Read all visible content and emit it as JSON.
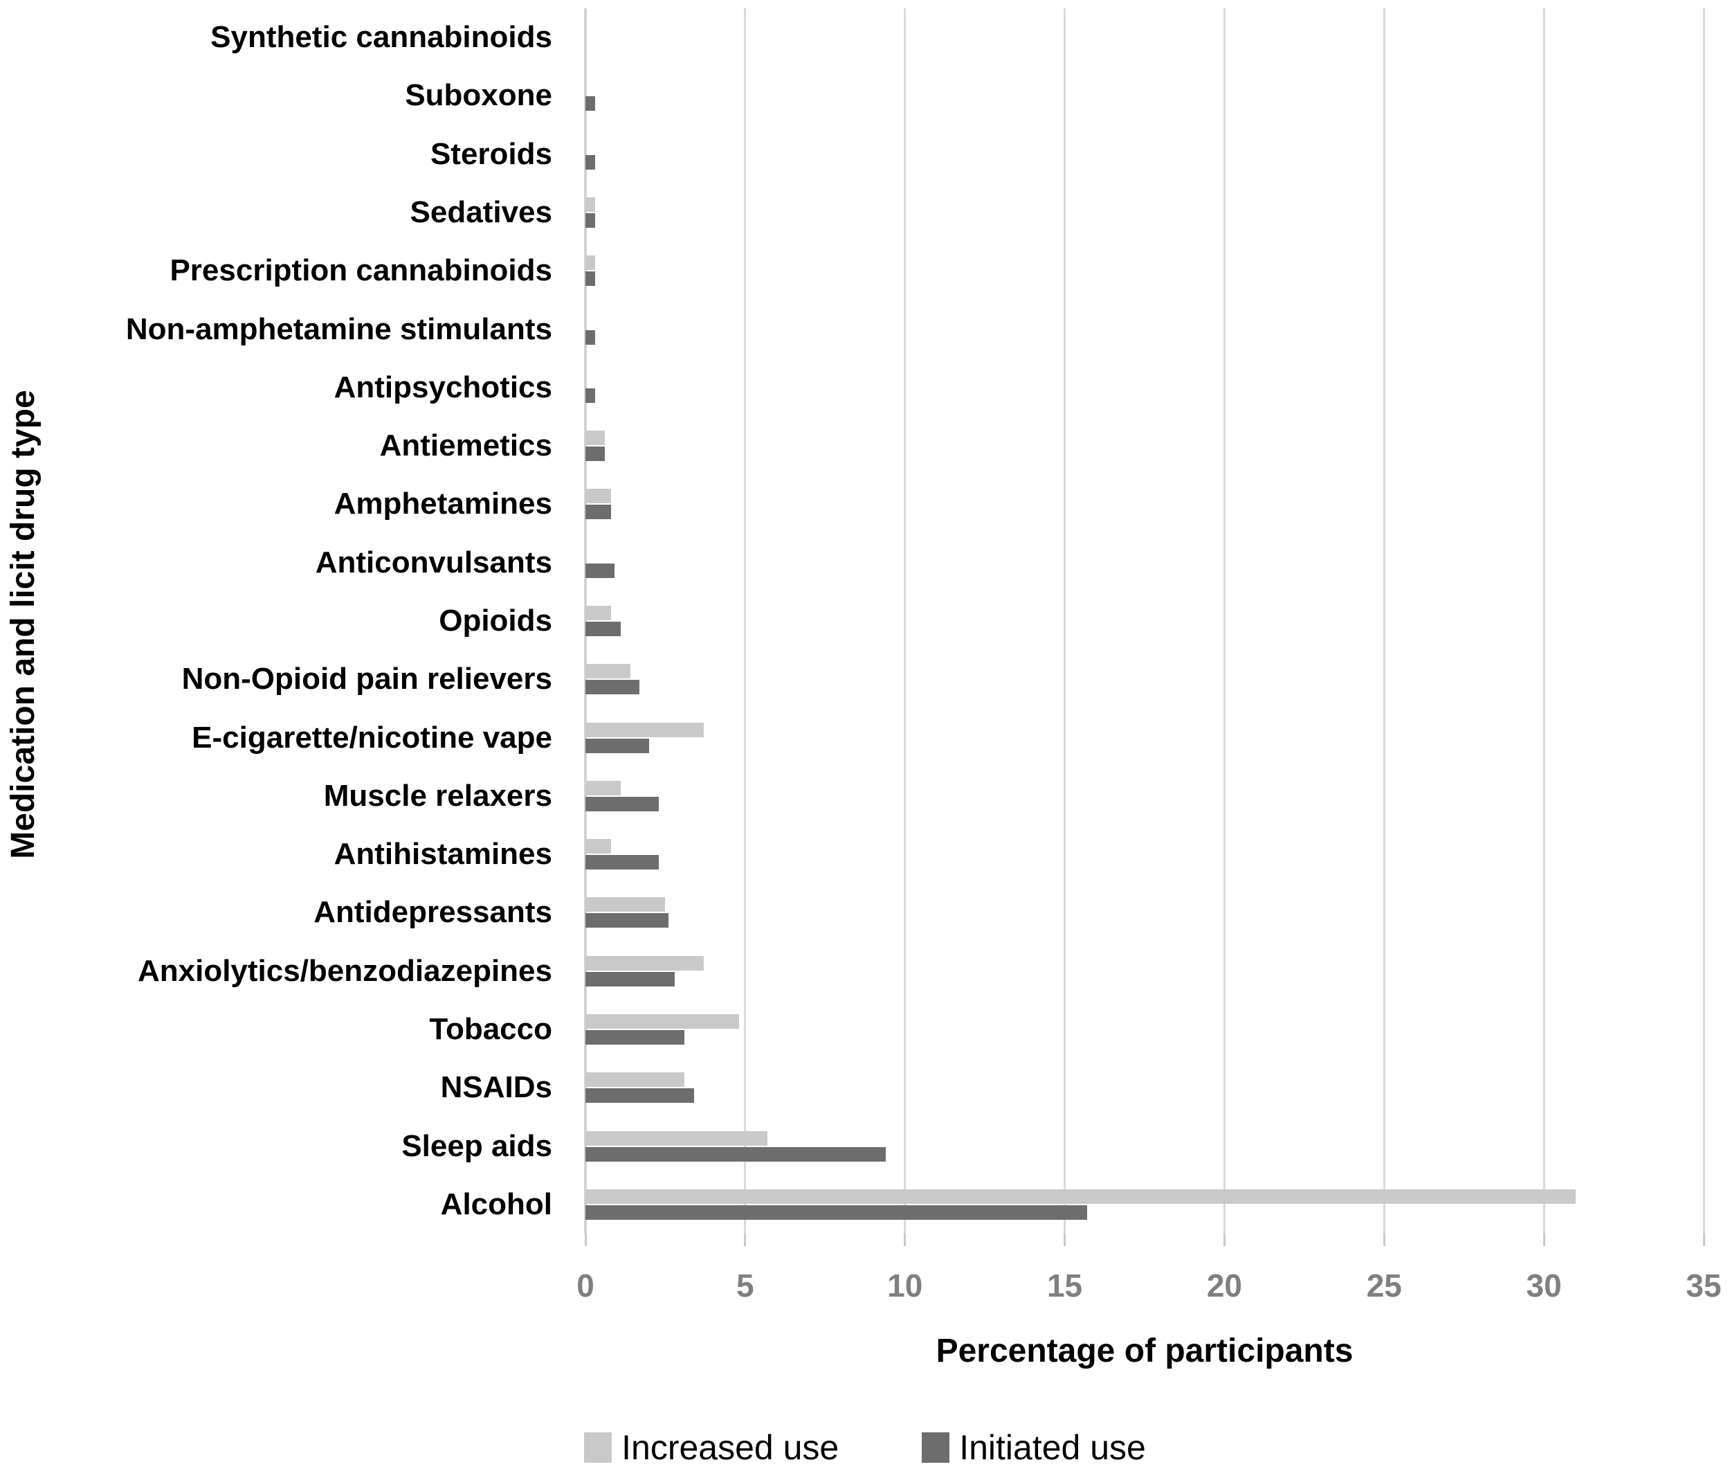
{
  "chart_data": {
    "type": "bar",
    "orientation": "horizontal",
    "title": "",
    "xlabel": "Percentage of participants",
    "ylabel": "Medication and licit drug type",
    "xlim": [
      0,
      35
    ],
    "xticks": [
      0,
      5,
      10,
      15,
      20,
      25,
      30,
      35
    ],
    "grid": true,
    "legend_position": "bottom",
    "categories": [
      "Synthetic cannabinoids",
      "Suboxone",
      "Steroids",
      "Sedatives",
      "Prescription cannabinoids",
      "Non-amphetamine stimulants",
      "Antipsychotics",
      "Antiemetics",
      "Amphetamines",
      "Anticonvulsants",
      "Opioids",
      "Non-Opioid pain relievers",
      "E-cigarette/nicotine vape",
      "Muscle relaxers",
      "Antihistamines",
      "Antidepressants",
      "Anxiolytics/benzodiazepines",
      "Tobacco",
      "NSAIDs",
      "Sleep aids",
      "Alcohol"
    ],
    "series": [
      {
        "name": "Increased use",
        "color": "#c9c9c9",
        "values": [
          0,
          0,
          0,
          0.3,
          0.3,
          0,
          0,
          0.6,
          0.8,
          0,
          0.8,
          1.4,
          3.7,
          1.1,
          0.8,
          2.5,
          3.7,
          4.8,
          3.1,
          5.7,
          31.0
        ]
      },
      {
        "name": "Initiated use",
        "color": "#6d6d6d",
        "values": [
          0,
          0.3,
          0.3,
          0.3,
          0.3,
          0.3,
          0.3,
          0.6,
          0.8,
          0.9,
          1.1,
          1.7,
          2.0,
          2.3,
          2.3,
          2.6,
          2.8,
          3.1,
          3.4,
          9.4,
          15.7
        ]
      }
    ]
  },
  "colors": {
    "gridline": "#d9d9d9",
    "axis_line": "#d2d2d2",
    "tick_text": "#7f7f7f",
    "label_text": "#000000",
    "background": "#ffffff"
  }
}
